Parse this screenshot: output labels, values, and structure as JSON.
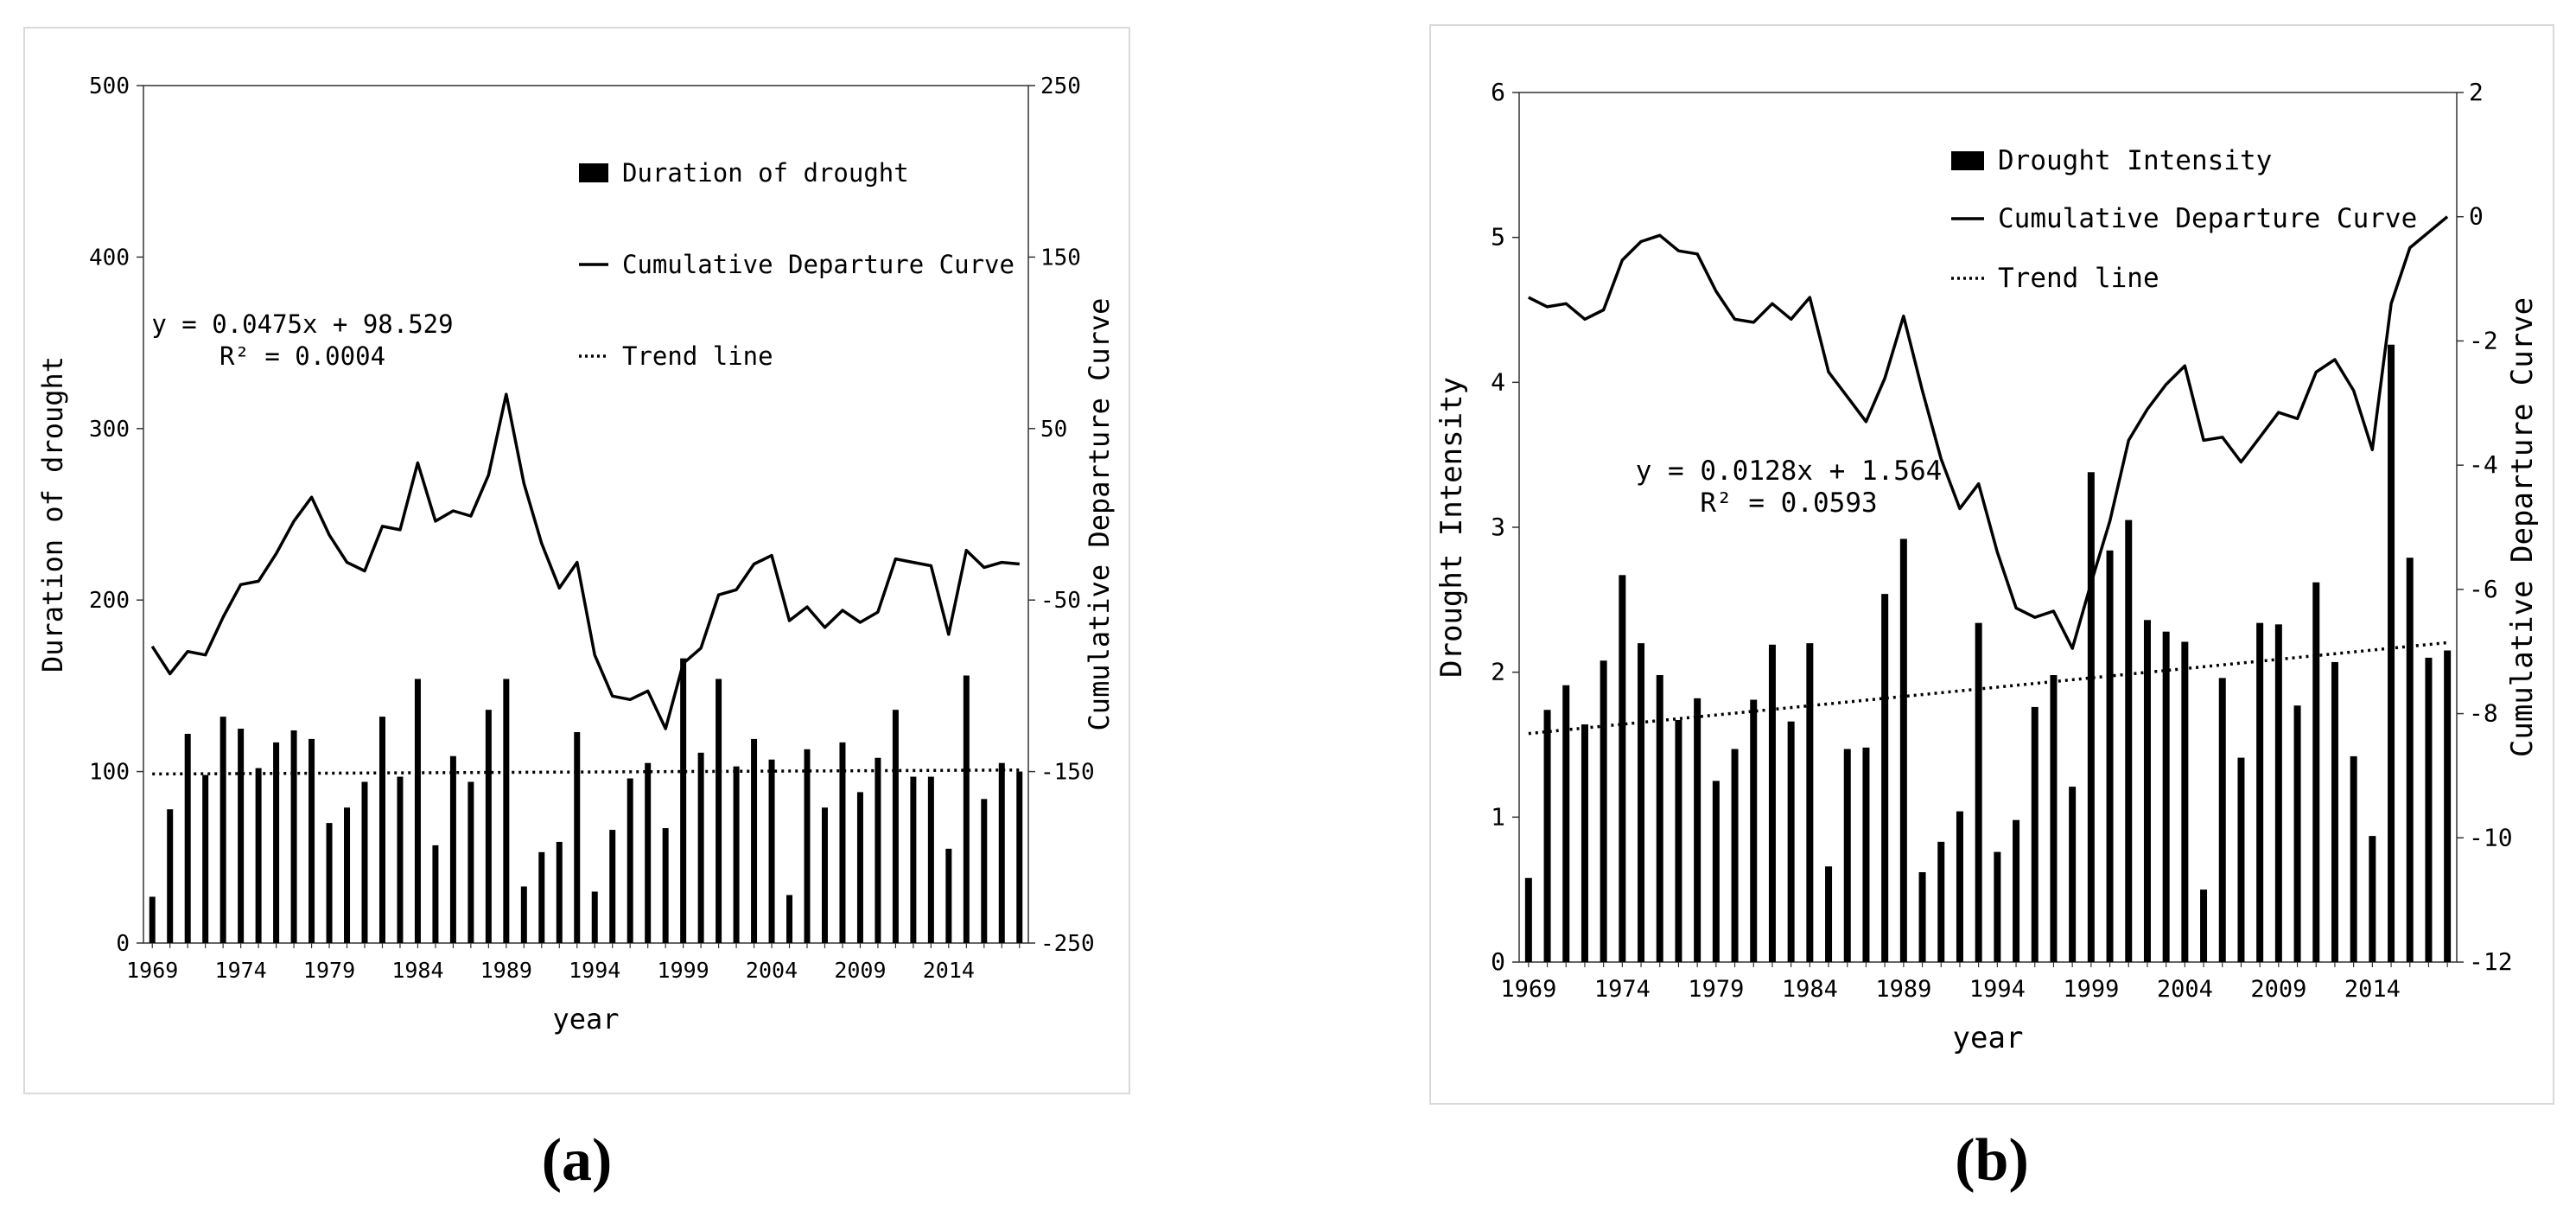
{
  "chart_data": [
    {
      "type": "bar",
      "panel_label": "(a)",
      "years": [
        1969,
        1970,
        1971,
        1972,
        1973,
        1974,
        1975,
        1976,
        1977,
        1978,
        1979,
        1980,
        1981,
        1982,
        1983,
        1984,
        1985,
        1986,
        1987,
        1988,
        1989,
        1990,
        1991,
        1992,
        1993,
        1994,
        1995,
        1996,
        1997,
        1998,
        1999,
        2000,
        2001,
        2002,
        2003,
        2004,
        2005,
        2006,
        2007,
        2008,
        2009,
        2010,
        2011,
        2012,
        2013,
        2014,
        2015,
        2016,
        2017,
        2018
      ],
      "x_tick_labels": [
        "1969",
        "1974",
        "1979",
        "1984",
        "1989",
        "1994",
        "1999",
        "2004",
        "2009",
        "2014"
      ],
      "xlabel": "year",
      "ylabel": "Duration of drought",
      "ylim": [
        0,
        500
      ],
      "y_ticks": [
        0,
        100,
        200,
        300,
        400,
        500
      ],
      "y2label": "Cumulative Departure Curve",
      "y2lim": [
        -250,
        250
      ],
      "y2_ticks": [
        -250,
        -150,
        -50,
        50,
        150,
        250
      ],
      "series": [
        {
          "name": "Duration of drought",
          "kind": "bar",
          "values": [
            27,
            78,
            122,
            98,
            132,
            125,
            102,
            117,
            124,
            119,
            70,
            79,
            94,
            132,
            97,
            154,
            57,
            109,
            94,
            136,
            154,
            33,
            53,
            59,
            123,
            30,
            66,
            96,
            105,
            67,
            166,
            111,
            154,
            103,
            119,
            107,
            28,
            113,
            79,
            117,
            88,
            108,
            136,
            97,
            97,
            55,
            156,
            84,
            105,
            100
          ]
        },
        {
          "name": "Cumulative Departure Curve",
          "kind": "line",
          "axis": "right",
          "values": [
            -77,
            -93,
            -80,
            -82,
            -60,
            -41,
            -39,
            -23,
            -4,
            10,
            -12,
            -28,
            -33,
            -7,
            -9,
            30,
            -4,
            2,
            -1,
            23,
            70,
            18,
            -17,
            -43,
            -28,
            -82,
            -106,
            -108,
            -103,
            -125,
            -87,
            -78,
            -47,
            -44,
            -29,
            -24,
            -62,
            -54,
            -66,
            -56,
            -63,
            -57,
            -26,
            -28,
            -30,
            -70,
            -21,
            -31,
            -28,
            -29
          ]
        },
        {
          "name": "Trend line",
          "kind": "trend",
          "slope": 0.0475,
          "intercept": 98.529
        }
      ],
      "equation_line1": "y = 0.0475x + 98.529",
      "equation_line2": "R² = 0.0004",
      "legend": [
        "Duration of drought",
        "Cumulative Departure Curve",
        "Trend line"
      ],
      "legend_position": "top-right"
    },
    {
      "type": "bar",
      "panel_label": "(b)",
      "years": [
        1969,
        1970,
        1971,
        1972,
        1973,
        1974,
        1975,
        1976,
        1977,
        1978,
        1979,
        1980,
        1981,
        1982,
        1983,
        1984,
        1985,
        1986,
        1987,
        1988,
        1989,
        1990,
        1991,
        1992,
        1993,
        1994,
        1995,
        1996,
        1997,
        1998,
        1999,
        2000,
        2001,
        2002,
        2003,
        2004,
        2005,
        2006,
        2007,
        2008,
        2009,
        2010,
        2011,
        2012,
        2013,
        2014,
        2015,
        2016,
        2017,
        2018
      ],
      "x_tick_labels": [
        "1969",
        "1974",
        "1979",
        "1984",
        "1989",
        "1994",
        "1999",
        "2004",
        "2009",
        "2014"
      ],
      "xlabel": "year",
      "ylabel": "Drought Intensity",
      "ylim": [
        0,
        6
      ],
      "y_ticks": [
        0,
        1,
        2,
        3,
        4,
        5,
        6
      ],
      "y2label": "Cumulative Departure Curve",
      "y2lim": [
        -12,
        2
      ],
      "y2_ticks": [
        -12,
        -10,
        -8,
        -6,
        -4,
        -2,
        0,
        2
      ],
      "series": [
        {
          "name": "Drought Intensity",
          "kind": "bar",
          "values": [
            0.58,
            1.74,
            1.91,
            1.64,
            2.08,
            2.67,
            2.2,
            1.98,
            1.67,
            1.82,
            1.25,
            1.47,
            1.81,
            2.19,
            1.66,
            2.2,
            0.66,
            1.47,
            1.48,
            2.54,
            2.92,
            0.62,
            0.83,
            1.04,
            2.34,
            0.76,
            0.98,
            1.76,
            1.98,
            1.21,
            3.38,
            2.84,
            3.05,
            2.36,
            2.28,
            2.21,
            0.5,
            1.96,
            1.41,
            2.34,
            2.33,
            1.77,
            2.62,
            2.07,
            1.42,
            0.87,
            4.26,
            2.79,
            2.1,
            2.15
          ]
        },
        {
          "name": "Cumulative Departure Curve",
          "kind": "line",
          "axis": "right",
          "values": [
            -1.3,
            -1.45,
            -1.4,
            -1.65,
            -1.5,
            -0.7,
            -0.4,
            -0.3,
            -0.55,
            -0.6,
            -1.2,
            -1.65,
            -1.7,
            -1.4,
            -1.65,
            -1.3,
            -2.5,
            -2.9,
            -3.3,
            -2.6,
            -1.6,
            -2.8,
            -3.9,
            -4.7,
            -4.3,
            -5.4,
            -6.3,
            -6.45,
            -6.35,
            -6.95,
            -5.9,
            -4.9,
            -3.6,
            -3.1,
            -2.7,
            -2.4,
            -3.6,
            -3.55,
            -3.95,
            -3.55,
            -3.15,
            -3.25,
            -2.5,
            -2.3,
            -2.8,
            -3.75,
            -1.4,
            -0.5,
            -0.25,
            0.0
          ]
        },
        {
          "name": "Trend line",
          "kind": "trend",
          "slope": 0.0128,
          "intercept": 1.564
        }
      ],
      "equation_line1": "y = 0.0128x + 1.564",
      "equation_line2": "R² = 0.0593",
      "legend": [
        "Drought Intensity",
        "Cumulative Departure Curve",
        "Trend line"
      ],
      "legend_position": "top-left"
    }
  ]
}
